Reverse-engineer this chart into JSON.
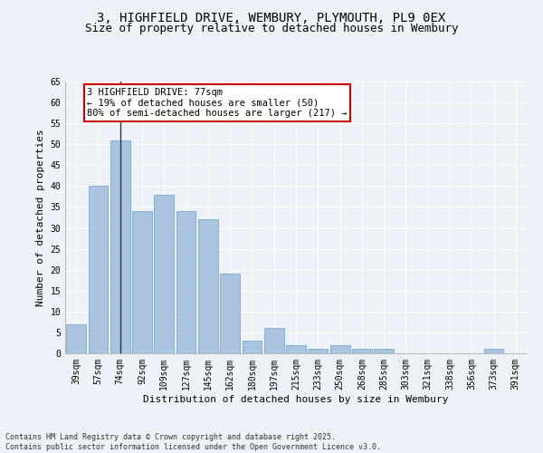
{
  "title1": "3, HIGHFIELD DRIVE, WEMBURY, PLYMOUTH, PL9 0EX",
  "title2": "Size of property relative to detached houses in Wembury",
  "xlabel": "Distribution of detached houses by size in Wembury",
  "ylabel": "Number of detached properties",
  "categories": [
    "39sqm",
    "57sqm",
    "74sqm",
    "92sqm",
    "109sqm",
    "127sqm",
    "145sqm",
    "162sqm",
    "180sqm",
    "197sqm",
    "215sqm",
    "233sqm",
    "250sqm",
    "268sqm",
    "285sqm",
    "303sqm",
    "321sqm",
    "338sqm",
    "356sqm",
    "373sqm",
    "391sqm"
  ],
  "values": [
    7,
    40,
    51,
    34,
    38,
    34,
    32,
    19,
    3,
    6,
    2,
    1,
    2,
    1,
    1,
    0,
    0,
    0,
    0,
    1,
    0
  ],
  "bar_color": "#aac4e0",
  "bar_edge_color": "#7aaace",
  "vline_x": 2,
  "vline_color": "#333333",
  "annotation_text": "3 HIGHFIELD DRIVE: 77sqm\n← 19% of detached houses are smaller (50)\n80% of semi-detached houses are larger (217) →",
  "annotation_box_color": "#ffffff",
  "annotation_box_edge_color": "#cc0000",
  "ylim": [
    0,
    65
  ],
  "yticks": [
    0,
    5,
    10,
    15,
    20,
    25,
    30,
    35,
    40,
    45,
    50,
    55,
    60,
    65
  ],
  "bg_color": "#edf2f9",
  "plot_bg_color": "#edf2f9",
  "footer1": "Contains HM Land Registry data © Crown copyright and database right 2025.",
  "footer2": "Contains public sector information licensed under the Open Government Licence v3.0.",
  "title_fontsize": 10,
  "subtitle_fontsize": 9,
  "tick_fontsize": 7,
  "axis_label_fontsize": 8,
  "annotation_fontsize": 7.5,
  "footer_fontsize": 6
}
